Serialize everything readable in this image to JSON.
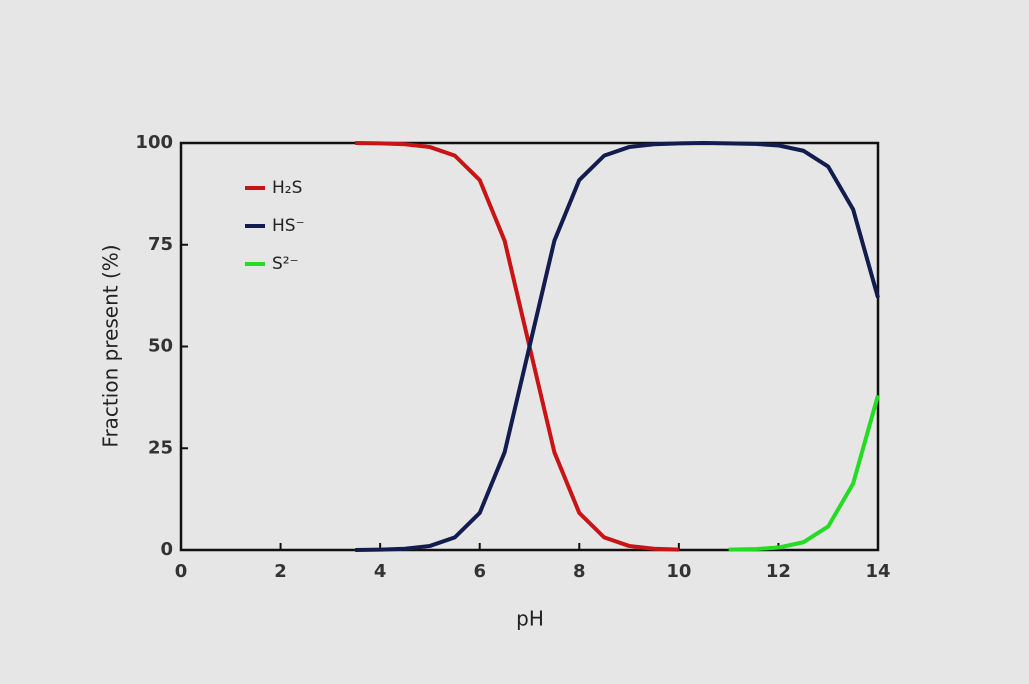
{
  "chart_data": {
    "type": "line",
    "x_label": "pH",
    "y_label": "Fraction present (%)",
    "x": [
      3.5,
      4,
      4.5,
      5,
      5.5,
      6,
      6.5,
      7,
      7.5,
      8,
      8.5,
      9,
      9.5,
      10,
      10.5,
      11,
      11.5,
      12,
      12.5,
      13,
      13.5,
      14
    ],
    "series": [
      {
        "name": "H₂S",
        "color": "#c81414",
        "values": [
          100,
          99.9,
          99.7,
          99.0,
          96.9,
          90.9,
          76.0,
          50,
          24.0,
          9.1,
          3.1,
          1.0,
          0.3,
          0.1,
          null,
          null,
          null,
          null,
          null,
          null,
          null,
          null
        ]
      },
      {
        "name": "HS⁻",
        "color": "#121c4e",
        "values": [
          0,
          0.1,
          0.3,
          1.0,
          3.1,
          9.1,
          24.0,
          50,
          76,
          90.9,
          96.9,
          99,
          99.7,
          99.9,
          100,
          99.9,
          99.8,
          99.4,
          98.1,
          94.2,
          83.7,
          62
        ]
      },
      {
        "name": "S²⁻",
        "color": "#22dd22",
        "values": [
          null,
          null,
          null,
          null,
          null,
          null,
          null,
          null,
          null,
          null,
          null,
          null,
          null,
          null,
          null,
          0.1,
          0.2,
          0.6,
          1.9,
          5.8,
          16.3,
          38
        ]
      }
    ],
    "xlim": [
      0,
      14
    ],
    "xticks": [
      0,
      2,
      4,
      6,
      8,
      10,
      12,
      14
    ],
    "ylim": [
      0,
      100
    ],
    "yticks": [
      0,
      25,
      50,
      75,
      100
    ],
    "legend": "upper left"
  }
}
